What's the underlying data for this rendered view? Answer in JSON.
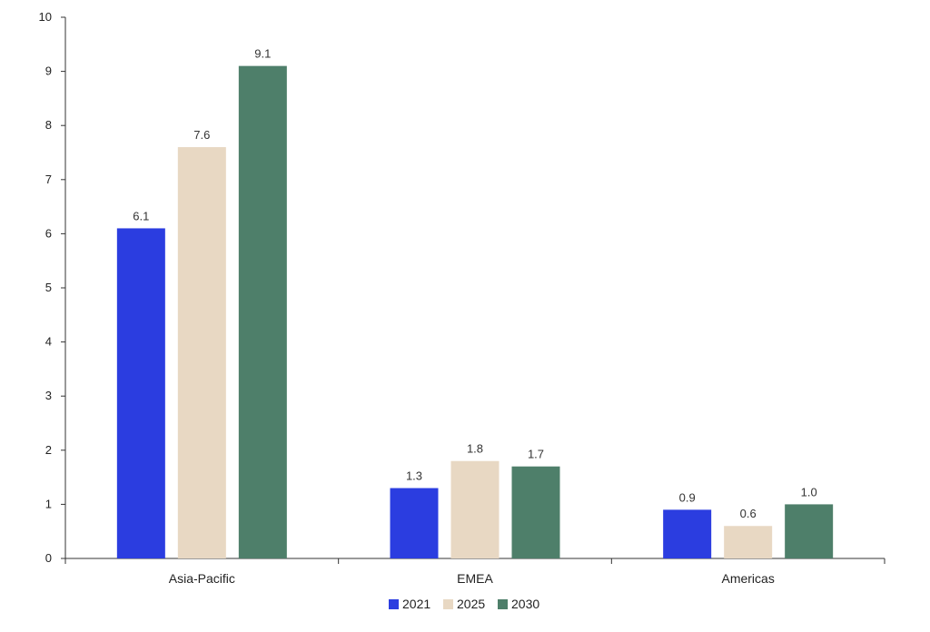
{
  "chart_data": {
    "type": "bar",
    "categories": [
      "Asia-Pacific",
      "EMEA",
      "Americas"
    ],
    "series": [
      {
        "name": "2021",
        "values": [
          6.1,
          1.3,
          0.9
        ],
        "color": "#2b3de0"
      },
      {
        "name": "2025",
        "values": [
          7.6,
          1.8,
          0.6
        ],
        "color": "#e8d8c3"
      },
      {
        "name": "2030",
        "values": [
          9.1,
          1.7,
          1.0
        ],
        "color": "#4e7f6a"
      }
    ],
    "data_labels": [
      [
        "6.1",
        "1.3",
        "0.9"
      ],
      [
        "7.6",
        "1.8",
        "0.6"
      ],
      [
        "9.1",
        "1.7",
        "1.0"
      ]
    ],
    "ylim": [
      0,
      10
    ],
    "yticks": [
      0,
      1,
      2,
      3,
      4,
      5,
      6,
      7,
      8,
      9,
      10
    ],
    "grid": false,
    "legend_position": "bottom"
  }
}
